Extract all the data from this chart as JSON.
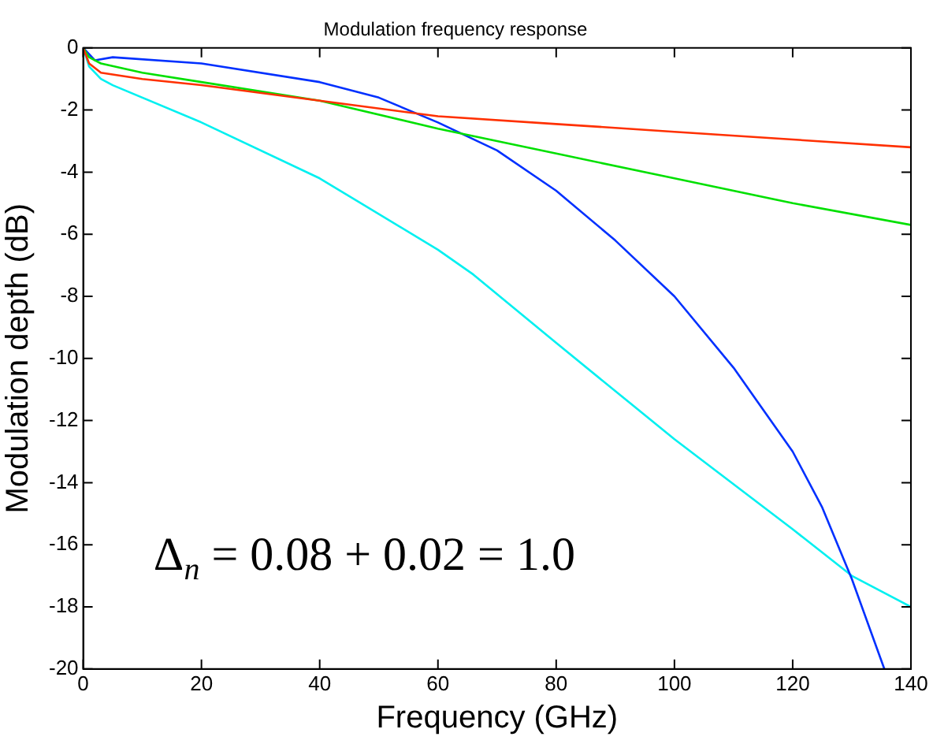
{
  "chart_data": {
    "type": "line",
    "title": "Modulation frequency response",
    "xlabel": "Frequency (GHz)",
    "ylabel": "Modulation depth (dB)",
    "xlim": [
      0,
      140
    ],
    "xticks": [
      0,
      20,
      40,
      60,
      80,
      100,
      120,
      140
    ],
    "ylim": [
      -20,
      0
    ],
    "yticks": [
      -20,
      -18,
      -16,
      -14,
      -12,
      -10,
      -8,
      -6,
      -4,
      -2,
      0
    ],
    "grid": false,
    "legend": false,
    "marker": "none",
    "line_style": "solid",
    "annotations": [
      "Δ$_{n}$ = 0.08 + 0.02 = 1.0"
    ],
    "series": [
      {
        "color": "#ff3000",
        "x": [
          0,
          1,
          3,
          10,
          20,
          40,
          60,
          80,
          100,
          120,
          140
        ],
        "values": [
          0,
          -0.5,
          -0.8,
          -1,
          -1.2,
          -1.7,
          -2.2,
          -2.45,
          -2.7,
          -2.95,
          -3.2
        ]
      },
      {
        "color": "#00e000",
        "x": [
          0,
          1,
          3,
          10,
          20,
          40,
          60,
          80,
          100,
          120,
          140
        ],
        "values": [
          0,
          -0.3,
          -0.5,
          -0.8,
          -1.1,
          -1.7,
          -2.6,
          -3.4,
          -4.2,
          -5,
          -5.7
        ]
      },
      {
        "color": "#0030ff",
        "x": [
          0,
          2,
          5,
          20,
          40,
          50,
          60,
          70,
          80,
          90,
          100,
          110,
          120,
          125,
          130,
          135.5
        ],
        "values": [
          0,
          -0.4,
          -0.3,
          -0.5,
          -1.1,
          -1.6,
          -2.4,
          -3.3,
          -4.6,
          -6.2,
          -8,
          -10.3,
          -13,
          -14.8,
          -17.1,
          -20
        ]
      },
      {
        "color": "#00f0f0",
        "x": [
          0,
          1,
          3,
          5,
          20,
          40,
          60,
          66,
          80,
          100,
          120,
          130,
          140
        ],
        "values": [
          0,
          -0.6,
          -1,
          -1.2,
          -2.4,
          -4.2,
          -6.5,
          -7.3,
          -9.5,
          -12.6,
          -15.5,
          -17,
          -18
        ]
      }
    ]
  }
}
